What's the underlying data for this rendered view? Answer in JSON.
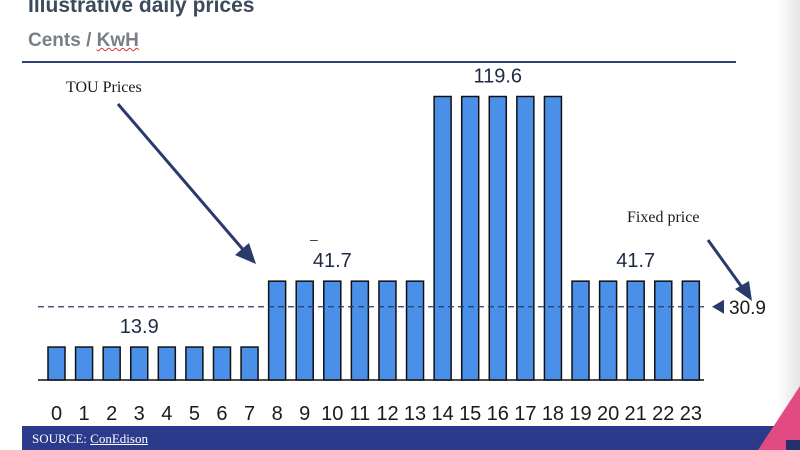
{
  "slide": {
    "title": "Illustrative daily prices",
    "subtitle_prefix": "Cents / ",
    "subtitle_unit": "KwH",
    "source_prefix": "SOURCE: ",
    "source_name": "ConEdison",
    "minus_mark": "–"
  },
  "colors": {
    "bar_fill": "#4a90e8",
    "bar_stroke": "#111111",
    "accent_navy": "#2b3a8a",
    "arrow": "#2b3a6b",
    "corner_pink": "#e24b82"
  },
  "chart_data": {
    "type": "bar",
    "title": "Illustrative daily prices",
    "ylabel": "Cents / KwH",
    "xlabel": "",
    "categories": [
      "0",
      "1",
      "2",
      "3",
      "4",
      "5",
      "6",
      "7",
      "8",
      "9",
      "10",
      "11",
      "12",
      "13",
      "14",
      "15",
      "16",
      "17",
      "18",
      "19",
      "20",
      "21",
      "22",
      "23"
    ],
    "values": [
      13.9,
      13.9,
      13.9,
      13.9,
      13.9,
      13.9,
      13.9,
      13.9,
      41.7,
      41.7,
      41.7,
      41.7,
      41.7,
      41.7,
      119.6,
      119.6,
      119.6,
      119.6,
      119.6,
      41.7,
      41.7,
      41.7,
      41.7,
      41.7
    ],
    "ylim": [
      0,
      135
    ],
    "grid": false,
    "fixed_price": 30.9,
    "data_labels": [
      {
        "text": "13.9",
        "value": 13.9,
        "category": "3"
      },
      {
        "text": "41.7",
        "value": 41.7,
        "category": "10"
      },
      {
        "text": "119.6",
        "value": 119.6,
        "category": "16"
      },
      {
        "text": "41.7",
        "value": 41.7,
        "category": "21"
      }
    ],
    "annotations": {
      "tou_label": "TOU Prices",
      "tou_points_to_category": "8",
      "fixed_label": "Fixed price",
      "fixed_value_label": "30.9"
    }
  }
}
